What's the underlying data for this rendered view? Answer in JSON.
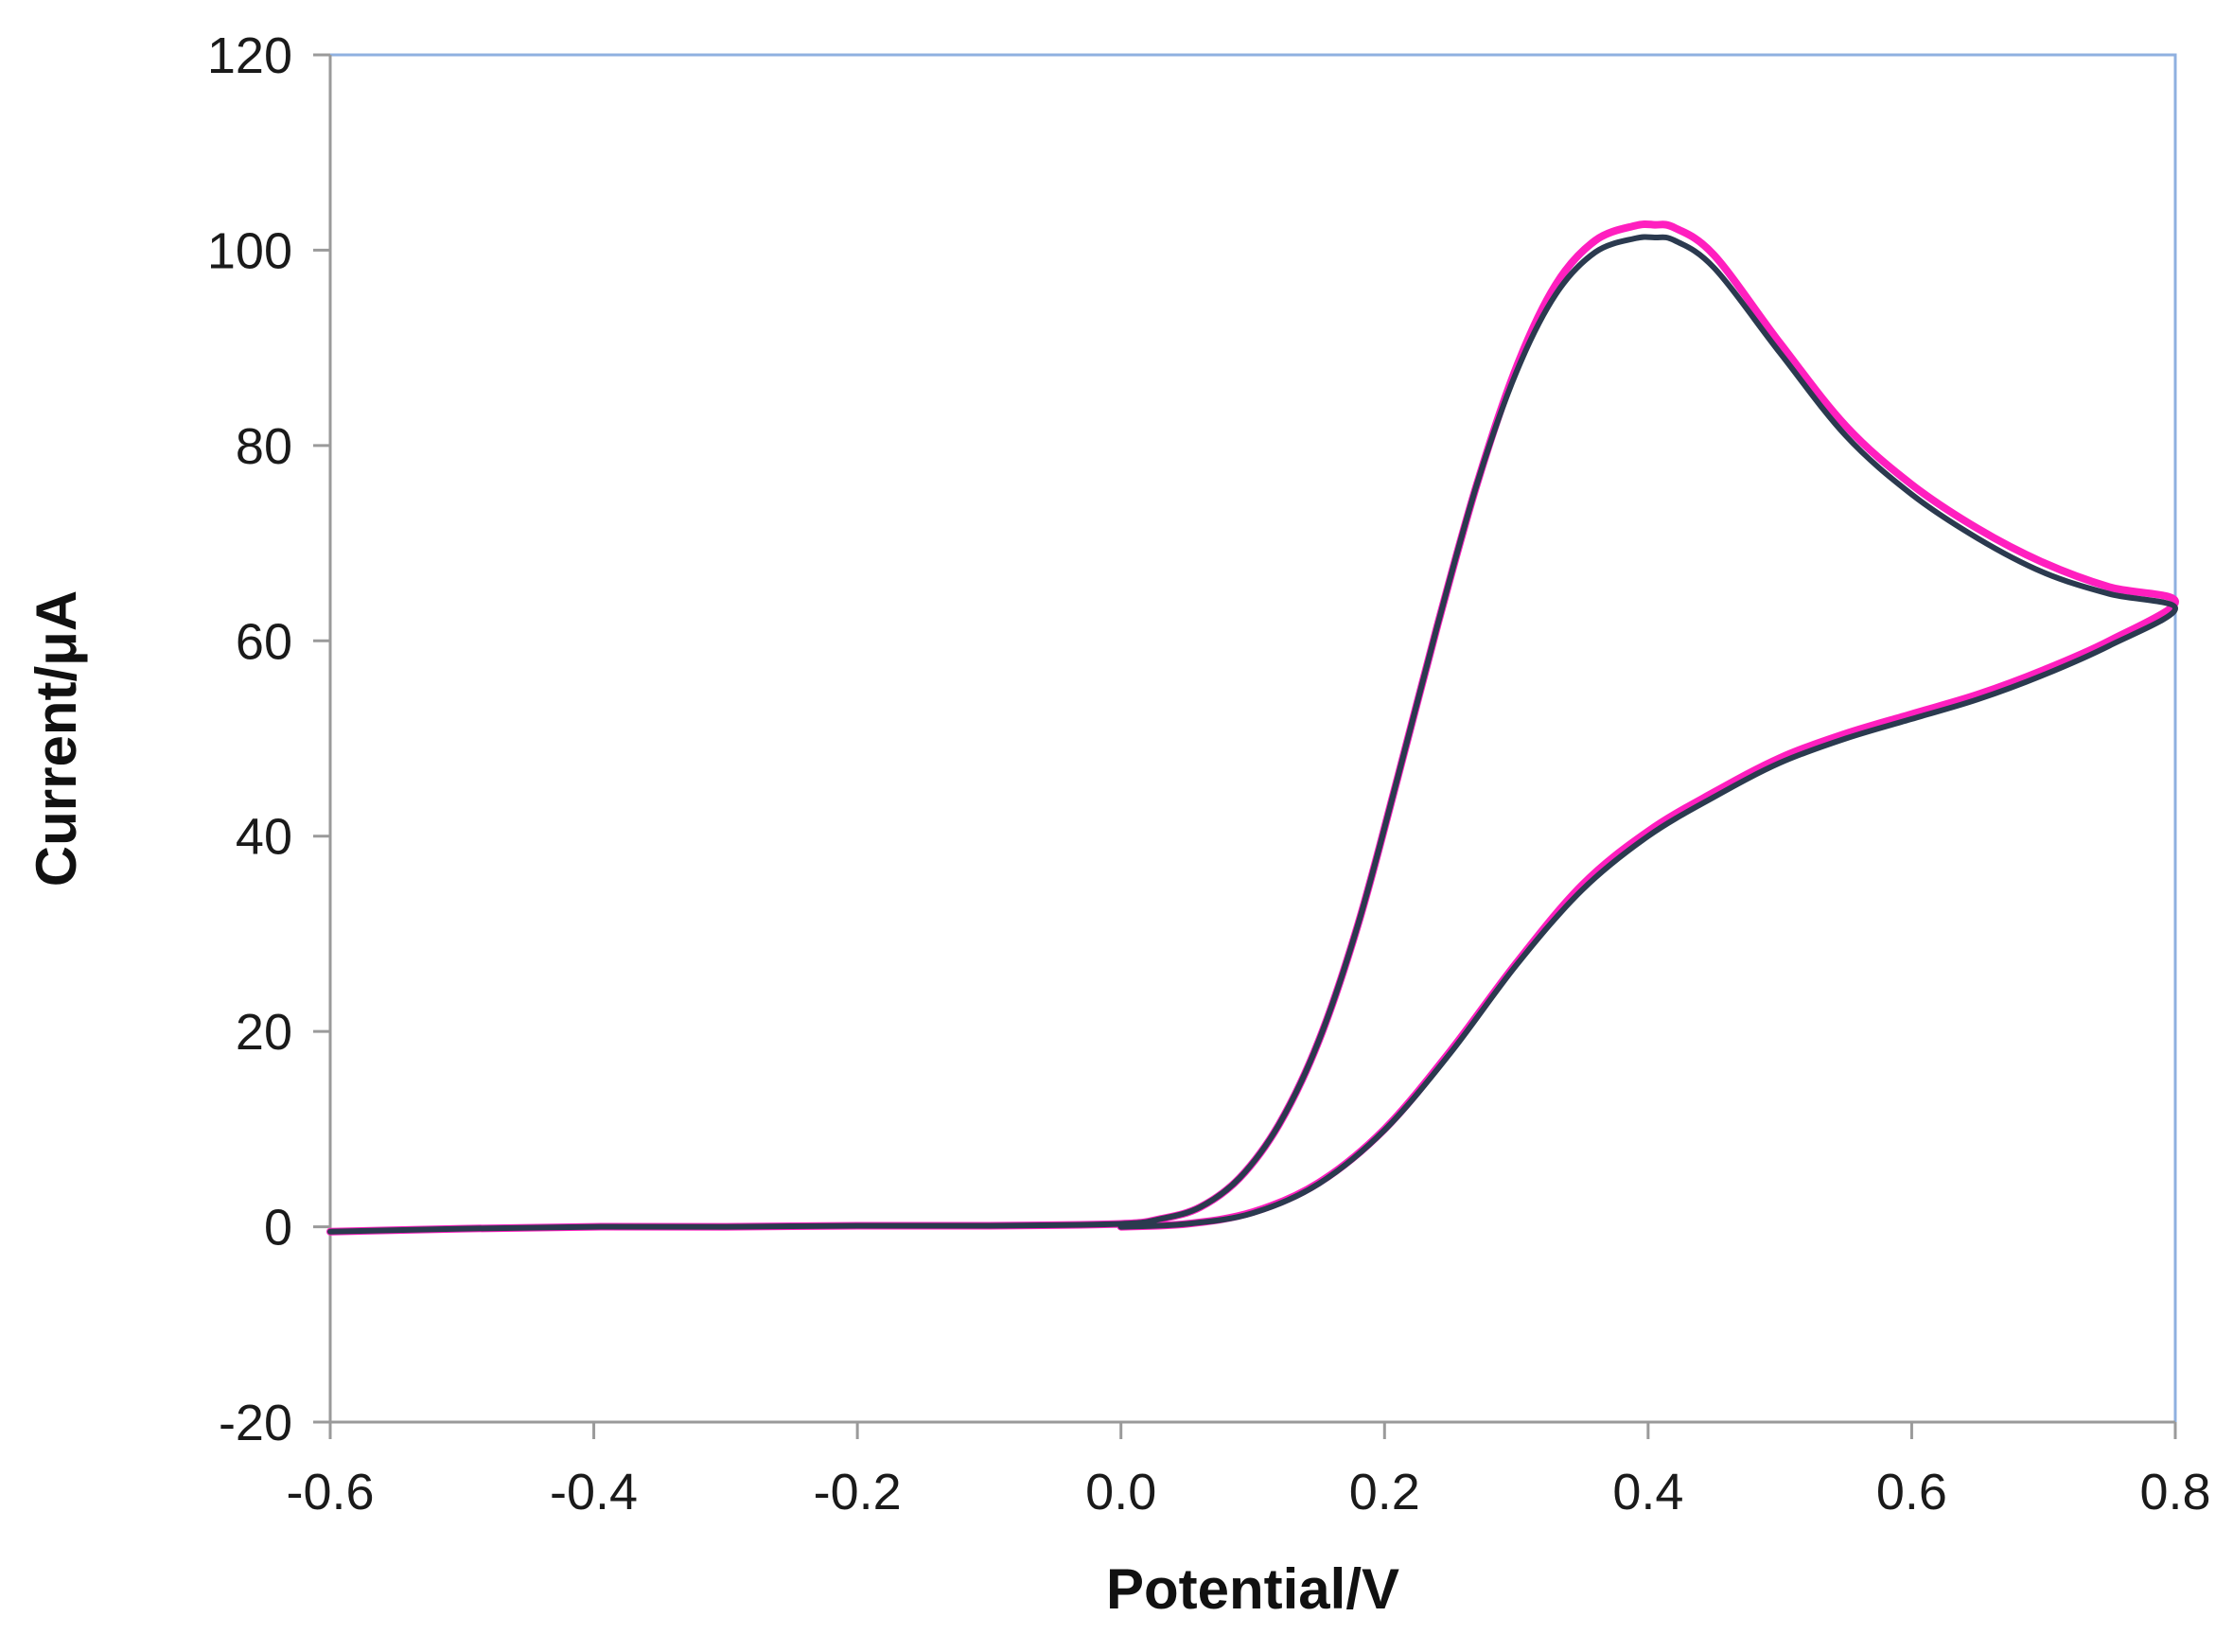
{
  "chart_data": {
    "type": "line",
    "title": "",
    "xlabel": "Potential/V",
    "ylabel": "Current/μA",
    "xlim": [
      -0.6,
      0.8
    ],
    "ylim": [
      -20,
      120
    ],
    "x_ticks": [
      -0.6,
      -0.4,
      -0.2,
      0.0,
      0.2,
      0.4,
      0.6,
      0.8
    ],
    "x_tick_labels": [
      "-0.6",
      "-0.4",
      "-0.2",
      "0.0",
      "0.2",
      "0.4",
      "0.6",
      "0.8"
    ],
    "y_ticks": [
      -20,
      0,
      20,
      40,
      60,
      80,
      100,
      120
    ],
    "y_tick_labels": [
      "-20",
      "0",
      "20",
      "40",
      "60",
      "80",
      "100",
      "120"
    ],
    "grid": false,
    "legend": "none",
    "series": [
      {
        "color": "#ff1fbf",
        "x": [
          -0.6,
          -0.5,
          -0.4,
          -0.3,
          -0.2,
          -0.1,
          0.0,
          0.03,
          0.06,
          0.09,
          0.12,
          0.15,
          0.18,
          0.21,
          0.24,
          0.27,
          0.3,
          0.33,
          0.36,
          0.39,
          0.405,
          0.42,
          0.45,
          0.5,
          0.55,
          0.6,
          0.65,
          0.7,
          0.75,
          0.8,
          0.75,
          0.7,
          0.65,
          0.6,
          0.55,
          0.5,
          0.45,
          0.4,
          0.35,
          0.3,
          0.25,
          0.2,
          0.15,
          0.1,
          0.05,
          0.0
        ],
        "y": [
          -0.5,
          -0.2,
          0.0,
          0.0,
          0.1,
          0.1,
          0.3,
          0.8,
          2.0,
          5.0,
          10.5,
          19.0,
          31.0,
          46.0,
          61.5,
          76.0,
          88.0,
          96.5,
          101.0,
          102.5,
          102.6,
          102.3,
          99.5,
          90.5,
          82.0,
          76.0,
          71.5,
          68.0,
          65.5,
          64.0,
          60.0,
          57.0,
          54.5,
          52.5,
          50.5,
          48.0,
          44.5,
          40.5,
          35.0,
          27.0,
          18.0,
          10.0,
          4.5,
          1.5,
          0.3,
          0.0
        ]
      },
      {
        "color": "#2b3a4f",
        "x": [
          -0.6,
          -0.5,
          -0.4,
          -0.3,
          -0.2,
          -0.1,
          0.0,
          0.03,
          0.06,
          0.09,
          0.12,
          0.15,
          0.18,
          0.21,
          0.24,
          0.27,
          0.3,
          0.33,
          0.36,
          0.39,
          0.405,
          0.42,
          0.45,
          0.5,
          0.55,
          0.6,
          0.65,
          0.7,
          0.75,
          0.8,
          0.75,
          0.7,
          0.65,
          0.6,
          0.55,
          0.5,
          0.45,
          0.4,
          0.35,
          0.3,
          0.25,
          0.2,
          0.15,
          0.1,
          0.05,
          0.0
        ],
        "y": [
          -0.5,
          -0.2,
          0.0,
          0.0,
          0.1,
          0.1,
          0.3,
          0.8,
          2.0,
          5.0,
          10.5,
          19.0,
          31.0,
          46.0,
          61.5,
          76.0,
          87.5,
          95.5,
          99.8,
          101.2,
          101.3,
          101.0,
          98.2,
          89.5,
          81.0,
          75.0,
          70.5,
          67.0,
          64.8,
          63.3,
          59.5,
          56.5,
          54.0,
          52.0,
          50.0,
          47.5,
          44.0,
          40.0,
          34.5,
          26.8,
          17.8,
          9.9,
          4.4,
          1.4,
          0.3,
          0.0
        ]
      }
    ]
  }
}
